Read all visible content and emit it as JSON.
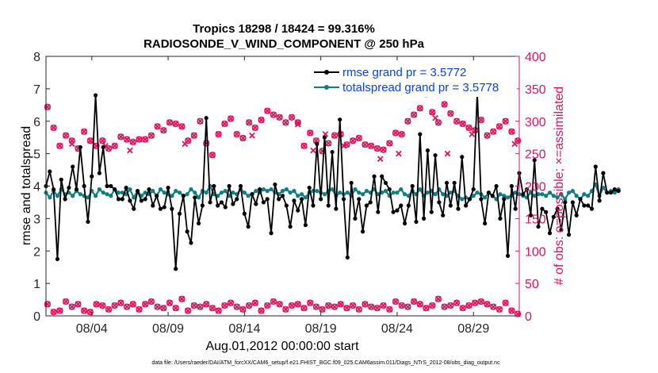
{
  "chart_data": {
    "type": "line",
    "title_line1": "Tropics 18298 / 18424 = 99.316%",
    "title_line2": "RADIOSONDE_V_WIND_COMPONENT @ 250 hPa",
    "xlabel": "Aug.01,2012 00:00:00 start",
    "ylabel_left": "rmse and totalspread",
    "ylabel_right": "# of obs: o=possible; ×=assimilated",
    "xlim": [
      0,
      31
    ],
    "ylim_left": [
      0,
      8
    ],
    "ylim_right": [
      0,
      400
    ],
    "x_ticks": [
      {
        "value": 3,
        "label": "08/04"
      },
      {
        "value": 8,
        "label": "08/09"
      },
      {
        "value": 13,
        "label": "08/14"
      },
      {
        "value": 18,
        "label": "08/19"
      },
      {
        "value": 23,
        "label": "08/24"
      },
      {
        "value": 28,
        "label": "08/29"
      }
    ],
    "y_left_ticks": [
      0,
      1,
      2,
      3,
      4,
      5,
      6,
      7,
      8
    ],
    "y_right_ticks": [
      0,
      50,
      100,
      150,
      200,
      250,
      300,
      350,
      400
    ],
    "legend": [
      {
        "label": "rmse grand pr = 3.5772",
        "color": "#000000"
      },
      {
        "label": "totalspread grand pr = 3.5778",
        "color": "#0f7d82"
      }
    ],
    "colors": {
      "rmse": "#000000",
      "spread": "#0f7d82",
      "obs": "#d6185f",
      "legend_text": "#0b45d8",
      "right_axis": "#d6185f"
    },
    "x_step": 0.25,
    "rmse": [
      4.0,
      4.45,
      3.9,
      1.75,
      4.2,
      3.6,
      3.95,
      4.6,
      3.9,
      5.2,
      4.0,
      2.9,
      4.3,
      6.8,
      4.4,
      5.2,
      4.0,
      4.0,
      3.9,
      3.6,
      3.6,
      3.95,
      3.55,
      3.3,
      3.85,
      3.55,
      3.6,
      3.9,
      3.4,
      3.7,
      3.3,
      3.35,
      3.95,
      3.3,
      1.45,
      3.15,
      3.7,
      2.6,
      2.25,
      3.65,
      2.85,
      3.4,
      6.1,
      3.5,
      4.0,
      3.4,
      3.5,
      3.35,
      4.0,
      3.45,
      3.6,
      4.0,
      3.15,
      2.75,
      3.75,
      3.45,
      3.9,
      3.5,
      3.6,
      2.55,
      4.05,
      3.6,
      3.7,
      3.4,
      2.75,
      3.55,
      3.25,
      3.6,
      2.8,
      3.95,
      3.4,
      5.3,
      3.6,
      5.5,
      3.4,
      5.05,
      3.3,
      6.05,
      3.6,
      1.8,
      4.1,
      3.0,
      3.6,
      2.6,
      3.4,
      3.5,
      4.3,
      3.2,
      4.3,
      4.1,
      3.9,
      3.2,
      3.25,
      3.4,
      2.85,
      3.4,
      4.0,
      2.9,
      5.6,
      3.0,
      5.1,
      3.2,
      4.95,
      3.5,
      3.1,
      4.1,
      3.4,
      4.1,
      3.3,
      4.9,
      3.4,
      3.6,
      3.9,
      6.9,
      3.6,
      2.85,
      3.8,
      3.7,
      4.0,
      3.0,
      3.6,
      1.85,
      4.0,
      3.3,
      4.4,
      3.75,
      3.9,
      3.1,
      4.8,
      2.75,
      3.3,
      3.2,
      2.55,
      3.05,
      3.3,
      2.65,
      3.5,
      2.5,
      3.5,
      3.1,
      3.6,
      3.4,
      3.4,
      3.3,
      4.6,
      3.55,
      4.4,
      3.8,
      3.8,
      3.9,
      3.85
    ],
    "spread": [
      3.8,
      3.65,
      3.85,
      3.7,
      3.9,
      3.75,
      3.8,
      3.7,
      3.85,
      3.75,
      3.7,
      3.65,
      3.85,
      3.7,
      3.9,
      3.8,
      3.75,
      3.7,
      3.9,
      3.8,
      3.8,
      3.75,
      3.9,
      3.65,
      3.85,
      3.7,
      3.8,
      3.75,
      3.85,
      3.7,
      3.9,
      3.8,
      3.75,
      3.7,
      3.85,
      3.8,
      3.7,
      3.75,
      3.9,
      3.8,
      3.65,
      3.85,
      3.8,
      4.0,
      3.75,
      3.7,
      3.8,
      3.85,
      3.7,
      3.8,
      3.75,
      3.9,
      3.8,
      3.7,
      3.75,
      3.85,
      3.8,
      3.9,
      3.85,
      3.9,
      3.8,
      3.75,
      3.85,
      3.9,
      3.8,
      3.85,
      3.7,
      3.75,
      3.65,
      3.8,
      3.85,
      3.85,
      3.8,
      3.75,
      3.85,
      3.9,
      3.7,
      3.8,
      3.75,
      3.8,
      3.7,
      3.9,
      3.8,
      3.75,
      3.85,
      3.8,
      3.9,
      3.75,
      3.8,
      3.85,
      3.7,
      3.8,
      3.8,
      3.9,
      3.75,
      3.7,
      3.85,
      3.75,
      3.9,
      3.7,
      3.8,
      3.85,
      3.75,
      3.9,
      3.75,
      3.7,
      3.8,
      3.85,
      3.7,
      3.6,
      3.65,
      3.6,
      3.7,
      3.8,
      3.75,
      3.65,
      3.8,
      3.7,
      3.6,
      3.75,
      3.7,
      3.65,
      3.7,
      3.8,
      3.75,
      3.7,
      3.65,
      3.8,
      3.7,
      3.75,
      3.75,
      3.7,
      3.8,
      3.7,
      3.65,
      3.75,
      3.6,
      3.8,
      3.85,
      3.7,
      3.6,
      3.75,
      3.7,
      3.85,
      4.05,
      3.7,
      3.95,
      3.8,
      3.85,
      3.8,
      3.9
    ],
    "obs_possible_high": [
      [
        0.1,
        322
      ],
      [
        0.5,
        290
      ],
      [
        0.9,
        262
      ],
      [
        1.3,
        278
      ],
      [
        1.7,
        270
      ],
      [
        2.1,
        258
      ],
      [
        2.5,
        284
      ],
      [
        2.9,
        270
      ],
      [
        3.3,
        262
      ],
      [
        3.7,
        270
      ],
      [
        4.1,
        258
      ],
      [
        4.5,
        262
      ],
      [
        4.9,
        276
      ],
      [
        5.3,
        272
      ],
      [
        5.7,
        268
      ],
      [
        6.1,
        272
      ],
      [
        6.5,
        272
      ],
      [
        6.9,
        278
      ],
      [
        7.3,
        292
      ],
      [
        7.7,
        286
      ],
      [
        8.1,
        298
      ],
      [
        8.5,
        296
      ],
      [
        8.9,
        292
      ],
      [
        9.3,
        270
      ],
      [
        9.7,
        278
      ],
      [
        10.1,
        300
      ],
      [
        10.5,
        266
      ],
      [
        10.9,
        248
      ],
      [
        11.3,
        280
      ],
      [
        11.7,
        296
      ],
      [
        12.1,
        304
      ],
      [
        12.5,
        280
      ],
      [
        12.9,
        274
      ],
      [
        13.3,
        298
      ],
      [
        13.7,
        290
      ],
      [
        14.1,
        302
      ],
      [
        14.5,
        316
      ],
      [
        14.9,
        310
      ],
      [
        15.3,
        306
      ],
      [
        15.7,
        298
      ],
      [
        16.1,
        306
      ],
      [
        16.5,
        298
      ],
      [
        16.9,
        262
      ],
      [
        17.3,
        282
      ],
      [
        17.7,
        270
      ],
      [
        18.1,
        254
      ],
      [
        18.5,
        266
      ],
      [
        18.9,
        278
      ],
      [
        19.3,
        280
      ],
      [
        19.7,
        264
      ],
      [
        20.1,
        270
      ],
      [
        20.5,
        274
      ],
      [
        20.9,
        264
      ],
      [
        21.3,
        262
      ],
      [
        21.7,
        258
      ],
      [
        22.1,
        256
      ],
      [
        22.5,
        266
      ],
      [
        22.9,
        282
      ],
      [
        23.3,
        280
      ],
      [
        23.7,
        300
      ],
      [
        24.1,
        310
      ],
      [
        24.5,
        320
      ],
      [
        24.9,
        342
      ],
      [
        25.3,
        314
      ],
      [
        25.7,
        298
      ],
      [
        26.1,
        326
      ],
      [
        26.5,
        312
      ],
      [
        26.9,
        300
      ],
      [
        27.3,
        296
      ],
      [
        27.7,
        290
      ],
      [
        28.1,
        286
      ],
      [
        28.5,
        302
      ],
      [
        28.9,
        278
      ],
      [
        29.3,
        284
      ],
      [
        29.7,
        292
      ],
      [
        30.1,
        300
      ],
      [
        30.5,
        284
      ],
      [
        30.9,
        270
      ]
    ],
    "obs_assimilated_high": [
      [
        1.7,
        265
      ],
      [
        3.9,
        262
      ],
      [
        5.5,
        255
      ],
      [
        9.1,
        265
      ],
      [
        13.5,
        278
      ],
      [
        16.5,
        295
      ],
      [
        17.5,
        255
      ],
      [
        18.3,
        280
      ],
      [
        19.5,
        262
      ],
      [
        21.9,
        242
      ],
      [
        23.1,
        250
      ],
      [
        25.5,
        305
      ],
      [
        26.3,
        250
      ],
      [
        27.9,
        280
      ],
      [
        30.7,
        265
      ]
    ],
    "obs_low": [
      [
        0.1,
        18
      ],
      [
        0.5,
        6
      ],
      [
        0.9,
        8
      ],
      [
        1.3,
        22
      ],
      [
        1.7,
        14
      ],
      [
        2.1,
        18
      ],
      [
        2.5,
        8
      ],
      [
        2.9,
        6
      ],
      [
        3.3,
        18
      ],
      [
        3.7,
        16
      ],
      [
        4.1,
        10
      ],
      [
        4.5,
        16
      ],
      [
        4.9,
        20
      ],
      [
        5.3,
        14
      ],
      [
        5.7,
        18
      ],
      [
        6.1,
        10
      ],
      [
        6.5,
        18
      ],
      [
        6.9,
        22
      ],
      [
        7.3,
        14
      ],
      [
        7.7,
        12
      ],
      [
        8.1,
        20
      ],
      [
        8.5,
        12
      ],
      [
        8.9,
        26
      ],
      [
        9.3,
        8
      ],
      [
        9.7,
        16
      ],
      [
        10.1,
        14
      ],
      [
        10.5,
        18
      ],
      [
        10.9,
        12
      ],
      [
        11.3,
        8
      ],
      [
        11.7,
        16
      ],
      [
        12.1,
        20
      ],
      [
        12.5,
        14
      ],
      [
        12.9,
        10
      ],
      [
        13.3,
        16
      ],
      [
        13.7,
        20
      ],
      [
        14.1,
        8
      ],
      [
        14.5,
        16
      ],
      [
        14.9,
        22
      ],
      [
        15.3,
        18
      ],
      [
        15.7,
        10
      ],
      [
        16.1,
        16
      ],
      [
        16.5,
        18
      ],
      [
        16.9,
        12
      ],
      [
        17.3,
        20
      ],
      [
        17.7,
        14
      ],
      [
        18.1,
        10
      ],
      [
        18.5,
        16
      ],
      [
        18.9,
        14
      ],
      [
        19.3,
        18
      ],
      [
        19.7,
        12
      ],
      [
        20.1,
        16
      ],
      [
        20.5,
        10
      ],
      [
        20.9,
        18
      ],
      [
        21.3,
        14
      ],
      [
        21.7,
        12
      ],
      [
        22.1,
        16
      ],
      [
        22.5,
        10
      ],
      [
        22.9,
        22
      ],
      [
        23.3,
        16
      ],
      [
        23.7,
        14
      ],
      [
        24.1,
        22
      ],
      [
        24.5,
        18
      ],
      [
        24.9,
        12
      ],
      [
        25.3,
        16
      ],
      [
        25.7,
        26
      ],
      [
        26.1,
        14
      ],
      [
        26.5,
        16
      ],
      [
        26.9,
        20
      ],
      [
        27.3,
        12
      ],
      [
        27.7,
        16
      ],
      [
        28.1,
        20
      ],
      [
        28.5,
        22
      ],
      [
        28.9,
        18
      ],
      [
        29.3,
        14
      ],
      [
        29.7,
        10
      ],
      [
        30.1,
        20
      ],
      [
        30.5,
        8
      ],
      [
        30.9,
        3
      ]
    ],
    "footer": "data file: /Users/raeder/DAI/ATM_forcXX/CAM6_setup/f.e21.FHIST_BGC.f09_025.CAM6assim.011/Diags_NTrS_2012-08/obs_diag_output.nc"
  }
}
